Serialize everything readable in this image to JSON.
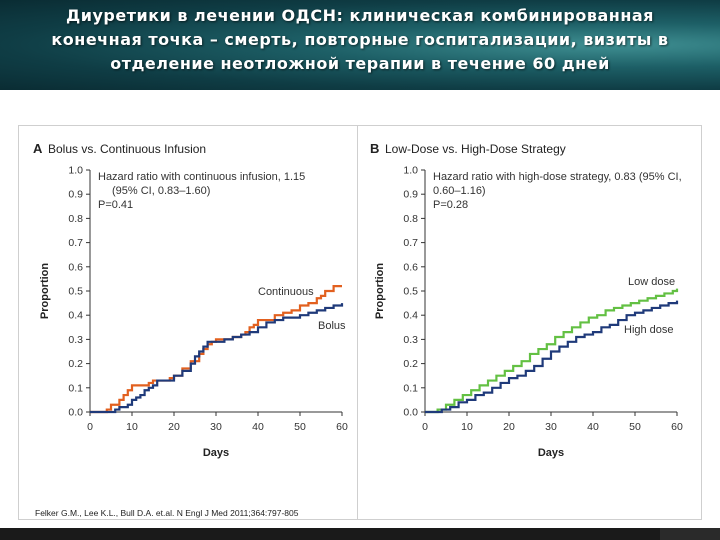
{
  "header": {
    "title_lines": [
      "Диуретики в лечении ОДСН: клиническая комбинированная",
      "конечная точка – смерть, повторные госпитализации, визиты в",
      "отделение неотложной терапии в течение 60 дней"
    ]
  },
  "citation": "Felker G.M., Lee K.L., Bull D.A. et.al. N Engl J Med 2011;364:797-805",
  "colors": {
    "orange": "#e2601f",
    "navy": "#1f3a7a",
    "green": "#63c043",
    "header_bg": "#1d5f66"
  },
  "chart_data": [
    {
      "type": "line",
      "panel": "A",
      "title": "Bolus vs. Continuous Infusion",
      "xlabel": "Days",
      "ylabel": "Proportion",
      "xlim": [
        0,
        60
      ],
      "ylim": [
        0,
        1.0
      ],
      "xticks": [
        0,
        10,
        20,
        30,
        40,
        50,
        60
      ],
      "yticks": [
        0.0,
        0.1,
        0.2,
        0.3,
        0.4,
        0.5,
        0.6,
        0.7,
        0.8,
        0.9,
        1.0
      ],
      "annotation": [
        "Hazard ratio with continuous infusion, 1.15",
        "(95% CI, 0.83–1.60)",
        "P=0.41"
      ],
      "series": [
        {
          "name": "Continuous",
          "color": "#e2601f",
          "x": [
            0,
            4,
            5,
            7,
            8,
            9,
            10,
            14,
            15,
            17,
            19,
            20,
            22,
            24,
            26,
            27,
            28,
            29,
            30,
            32,
            34,
            36,
            37,
            38,
            39,
            40,
            42,
            44,
            46,
            48,
            50,
            52,
            54,
            55,
            56,
            58,
            60
          ],
          "y": [
            0,
            0.01,
            0.03,
            0.05,
            0.07,
            0.09,
            0.11,
            0.12,
            0.13,
            0.13,
            0.14,
            0.15,
            0.18,
            0.21,
            0.24,
            0.26,
            0.28,
            0.29,
            0.3,
            0.3,
            0.31,
            0.32,
            0.33,
            0.35,
            0.36,
            0.38,
            0.38,
            0.4,
            0.41,
            0.42,
            0.44,
            0.45,
            0.47,
            0.48,
            0.5,
            0.52,
            0.52
          ]
        },
        {
          "name": "Bolus",
          "color": "#1f3a7a",
          "x": [
            0,
            6,
            7,
            9,
            10,
            11,
            12,
            13,
            14,
            15,
            16,
            18,
            20,
            22,
            24,
            25,
            26,
            27,
            28,
            30,
            32,
            34,
            36,
            38,
            40,
            42,
            44,
            46,
            48,
            50,
            52,
            54,
            56,
            58,
            60
          ],
          "y": [
            0,
            0.01,
            0.02,
            0.03,
            0.05,
            0.06,
            0.07,
            0.09,
            0.1,
            0.11,
            0.13,
            0.13,
            0.15,
            0.17,
            0.2,
            0.23,
            0.25,
            0.27,
            0.29,
            0.29,
            0.3,
            0.31,
            0.32,
            0.33,
            0.35,
            0.37,
            0.38,
            0.39,
            0.39,
            0.4,
            0.41,
            0.42,
            0.43,
            0.44,
            0.45
          ]
        }
      ]
    },
    {
      "type": "line",
      "panel": "B",
      "title": "Low-Dose vs. High-Dose Strategy",
      "xlabel": "Days",
      "ylabel": "Proportion",
      "xlim": [
        0,
        60
      ],
      "ylim": [
        0,
        1.0
      ],
      "xticks": [
        0,
        10,
        20,
        30,
        40,
        50,
        60
      ],
      "yticks": [
        0.0,
        0.1,
        0.2,
        0.3,
        0.4,
        0.5,
        0.6,
        0.7,
        0.8,
        0.9,
        1.0
      ],
      "annotation": [
        "Hazard ratio with high-dose strategy, 0.83 (95% CI,",
        "0.60–1.16)",
        "P=0.28"
      ],
      "series": [
        {
          "name": "Low dose",
          "color": "#63c043",
          "x": [
            0,
            3,
            5,
            7,
            9,
            11,
            13,
            15,
            17,
            19,
            21,
            23,
            25,
            27,
            29,
            31,
            33,
            35,
            37,
            39,
            41,
            43,
            45,
            47,
            49,
            51,
            53,
            55,
            57,
            59,
            60
          ],
          "y": [
            0,
            0.01,
            0.03,
            0.05,
            0.07,
            0.09,
            0.11,
            0.13,
            0.15,
            0.17,
            0.19,
            0.21,
            0.24,
            0.26,
            0.28,
            0.31,
            0.33,
            0.35,
            0.37,
            0.39,
            0.4,
            0.42,
            0.43,
            0.44,
            0.45,
            0.46,
            0.47,
            0.48,
            0.49,
            0.5,
            0.51
          ]
        },
        {
          "name": "High dose",
          "color": "#1f3a7a",
          "x": [
            0,
            4,
            6,
            8,
            10,
            12,
            14,
            16,
            18,
            20,
            22,
            24,
            26,
            28,
            30,
            32,
            34,
            36,
            38,
            40,
            42,
            44,
            46,
            48,
            50,
            52,
            54,
            56,
            58,
            60
          ],
          "y": [
            0,
            0.01,
            0.02,
            0.04,
            0.05,
            0.07,
            0.08,
            0.1,
            0.12,
            0.14,
            0.15,
            0.17,
            0.19,
            0.22,
            0.25,
            0.27,
            0.29,
            0.31,
            0.32,
            0.33,
            0.35,
            0.36,
            0.38,
            0.4,
            0.41,
            0.42,
            0.43,
            0.44,
            0.45,
            0.46
          ]
        }
      ]
    }
  ]
}
